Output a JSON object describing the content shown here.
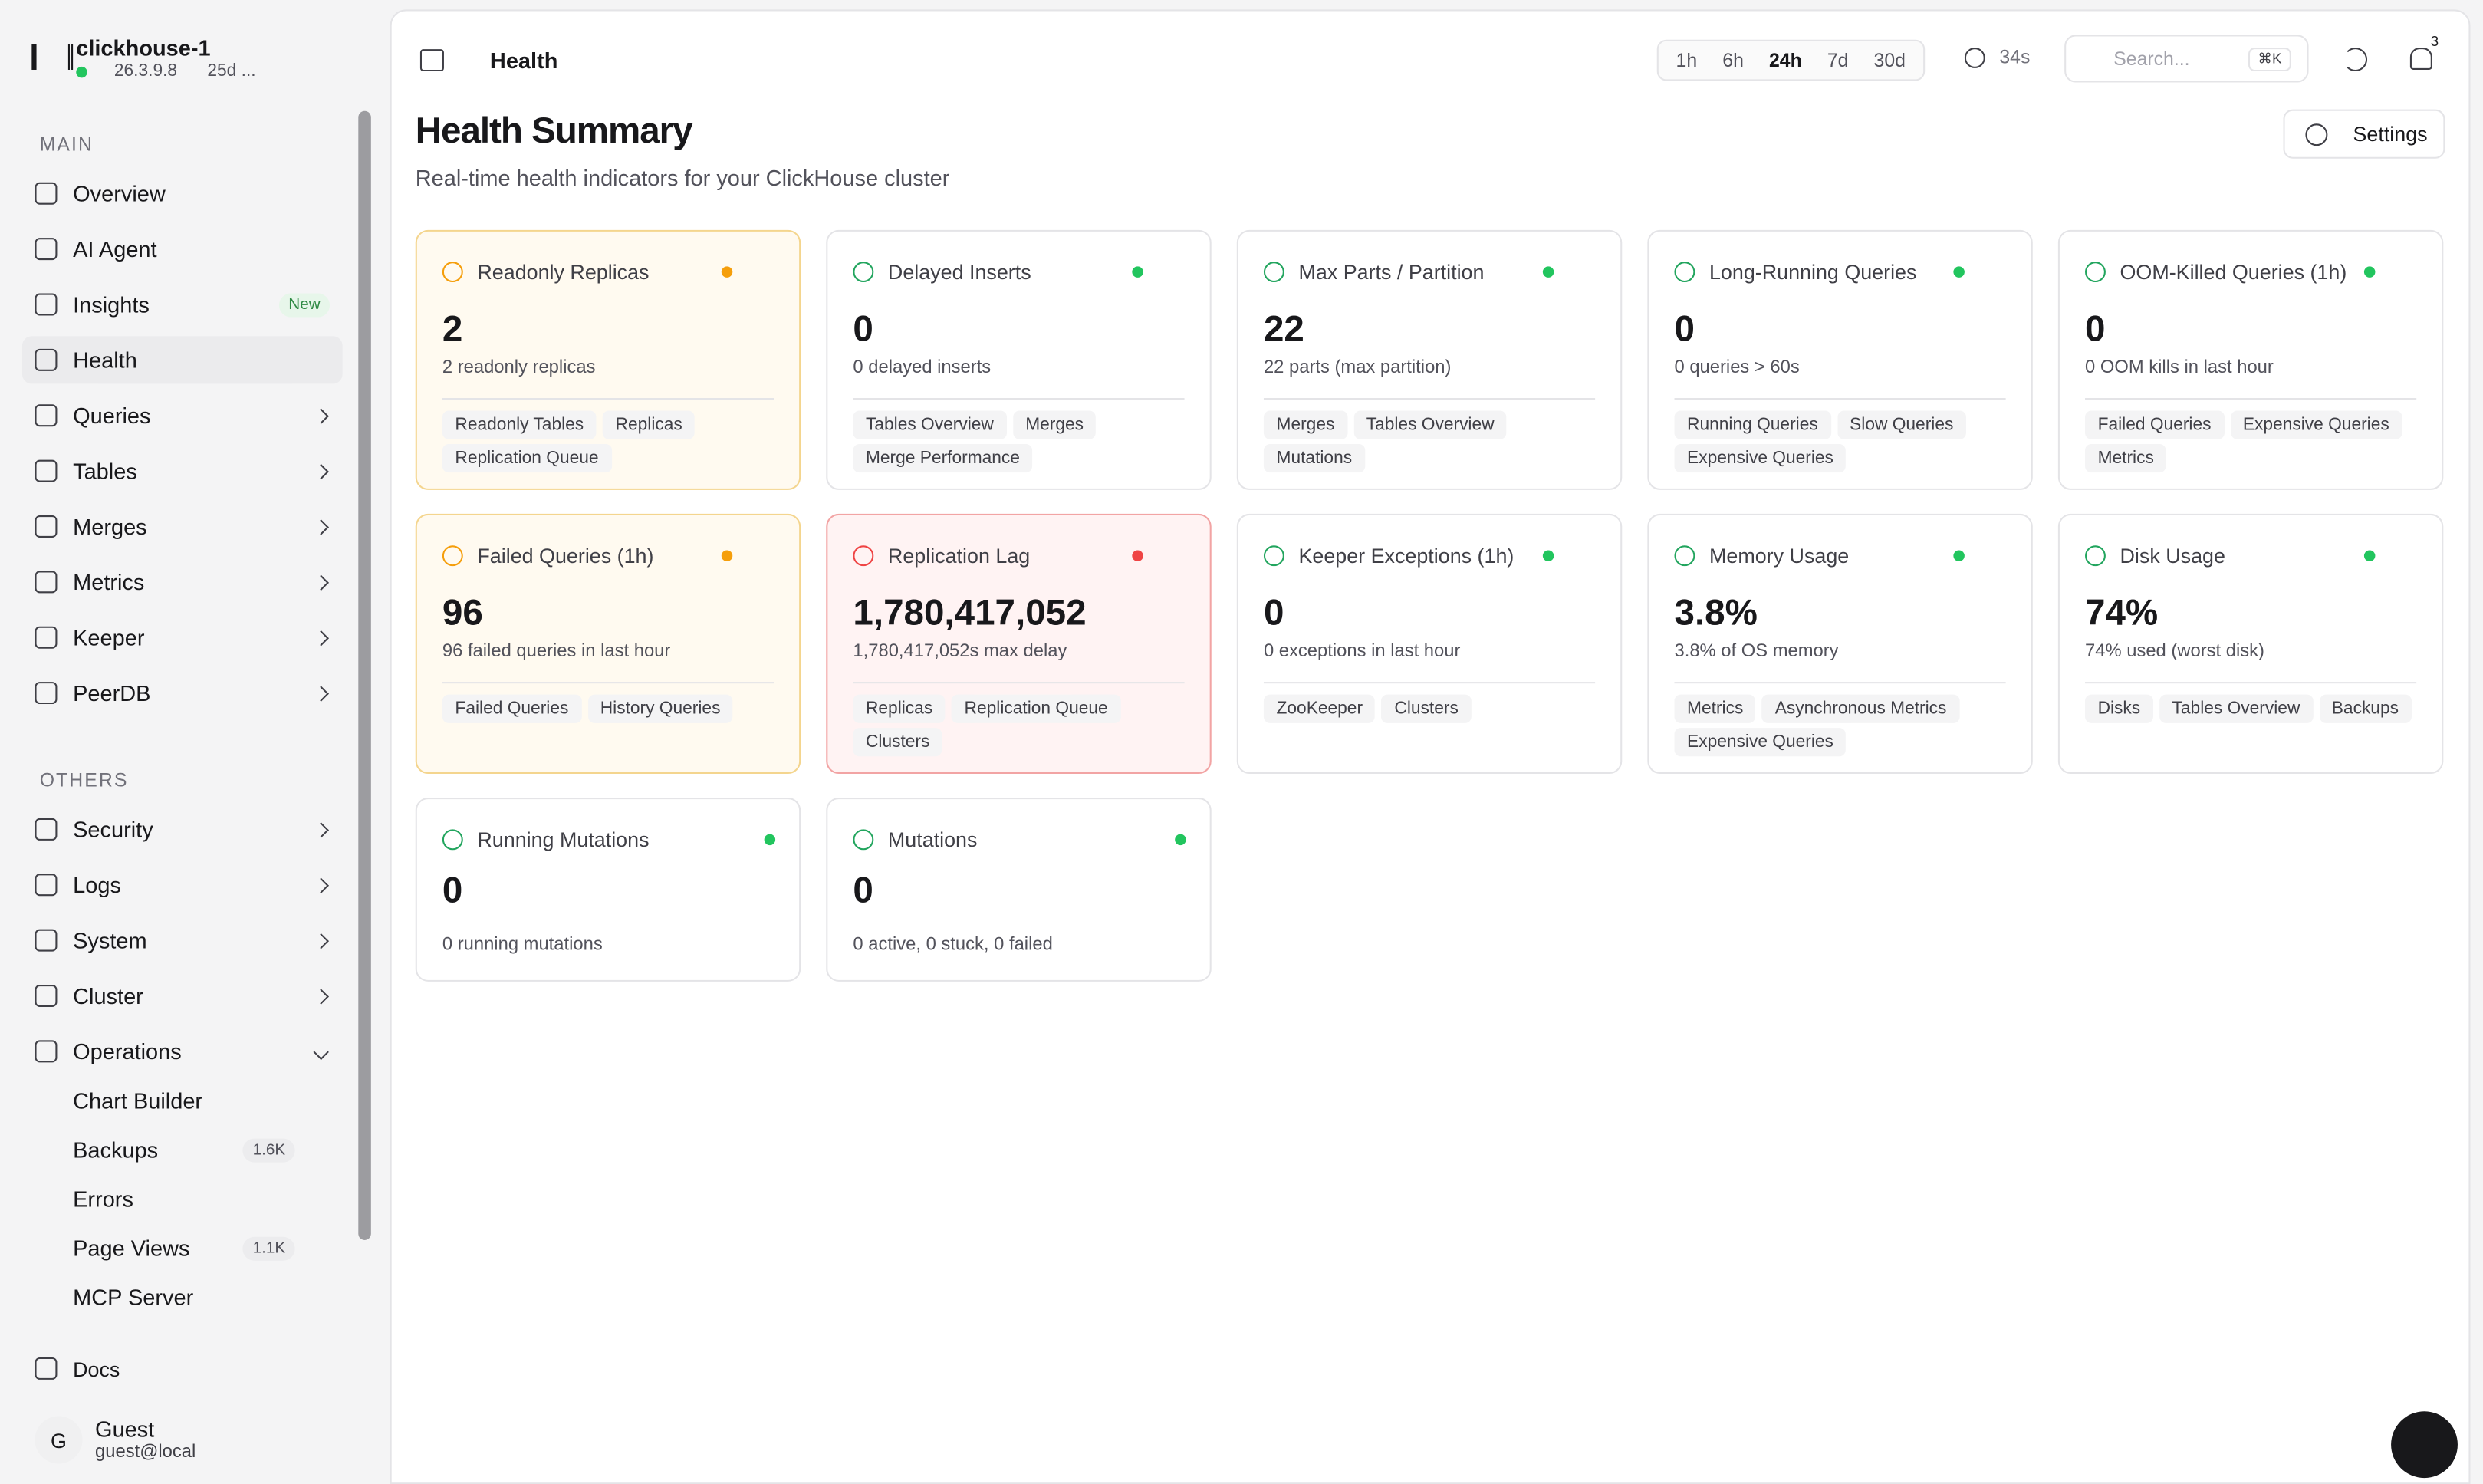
{
  "sidebar": {
    "cluster": "clickhouse-1",
    "version": "26.3.9.8",
    "uptime": "25d ...",
    "sections": [
      {
        "title": "MAIN",
        "items": [
          {
            "label": "Overview"
          },
          {
            "label": "AI Agent"
          },
          {
            "label": "Insights",
            "badge": "New"
          },
          {
            "label": "Health",
            "active": true
          },
          {
            "label": "Queries",
            "expandable": true
          },
          {
            "label": "Tables",
            "expandable": true
          },
          {
            "label": "Merges",
            "expandable": true
          },
          {
            "label": "Metrics",
            "expandable": true
          },
          {
            "label": "Keeper",
            "expandable": true
          },
          {
            "label": "PeerDB",
            "expandable": true
          }
        ]
      },
      {
        "title": "OTHERS",
        "items": [
          {
            "label": "Security",
            "expandable": true
          },
          {
            "label": "Logs",
            "expandable": true
          },
          {
            "label": "System",
            "expandable": true
          },
          {
            "label": "Cluster",
            "expandable": true
          },
          {
            "label": "Operations",
            "expandable": true,
            "expanded": true,
            "children": [
              {
                "label": "Chart Builder"
              },
              {
                "label": "Backups",
                "badge": "1.6K"
              },
              {
                "label": "Errors"
              },
              {
                "label": "Page Views",
                "badge": "1.1K"
              },
              {
                "label": "MCP Server"
              }
            ]
          }
        ]
      }
    ],
    "docs": "Docs",
    "user": {
      "initial": "G",
      "name": "Guest",
      "email": "guest@local"
    }
  },
  "header": {
    "page": "Health",
    "ranges": [
      "1h",
      "6h",
      "24h",
      "7d",
      "30d"
    ],
    "selected_range": 2,
    "refresh": "34s",
    "search": "Search...",
    "shortcut": "⌘K",
    "notifications": "3"
  },
  "summary": {
    "title": "Health Summary",
    "subtitle": "Real-time health indicators for your ClickHouse cluster",
    "settings": "Settings"
  },
  "cards": [
    {
      "title": "Readonly Replicas",
      "status": "warning",
      "value": "2",
      "detail": "2 readonly replicas",
      "links": [
        "Readonly Tables",
        "Replicas",
        "Replication Queue"
      ]
    },
    {
      "title": "Delayed Inserts",
      "status": "ok",
      "value": "0",
      "detail": "0 delayed inserts",
      "links": [
        "Tables Overview",
        "Merges",
        "Merge Performance"
      ]
    },
    {
      "title": "Max Parts / Partition",
      "status": "ok",
      "value": "22",
      "detail": "22 parts (max partition)",
      "links": [
        "Merges",
        "Tables Overview",
        "Mutations"
      ]
    },
    {
      "title": "Long-Running Queries",
      "status": "ok",
      "value": "0",
      "detail": "0 queries > 60s",
      "links": [
        "Running Queries",
        "Slow Queries",
        "Expensive Queries"
      ]
    },
    {
      "title": "OOM-Killed Queries (1h)",
      "status": "ok",
      "value": "0",
      "detail": "0 OOM kills in last hour",
      "links": [
        "Failed Queries",
        "Expensive Queries",
        "Metrics"
      ]
    },
    {
      "title": "Failed Queries (1h)",
      "status": "warning",
      "value": "96",
      "detail": "96 failed queries in last hour",
      "links": [
        "Failed Queries",
        "History Queries"
      ]
    },
    {
      "title": "Replication Lag",
      "status": "critical",
      "value": "1,780,417,052",
      "detail": "1,780,417,052s max delay",
      "links": [
        "Replicas",
        "Replication Queue",
        "Clusters"
      ]
    },
    {
      "title": "Keeper Exceptions (1h)",
      "status": "ok",
      "value": "0",
      "detail": "0 exceptions in last hour",
      "links": [
        "ZooKeeper",
        "Clusters"
      ]
    },
    {
      "title": "Memory Usage",
      "status": "ok",
      "value": "3.8%",
      "detail": "3.8% of OS memory",
      "links": [
        "Metrics",
        "Asynchronous Metrics",
        "Expensive Queries"
      ]
    },
    {
      "title": "Disk Usage",
      "status": "ok",
      "value": "74%",
      "detail": "74% used (worst disk)",
      "links": [
        "Disks",
        "Tables Overview",
        "Backups"
      ]
    },
    {
      "title": "Running Mutations",
      "status": "ok",
      "value": "0",
      "detail": "0 running mutations",
      "links": []
    },
    {
      "title": "Mutations",
      "status": "ok",
      "value": "0",
      "detail": "0 active, 0 stuck, 0 failed",
      "links": []
    }
  ]
}
